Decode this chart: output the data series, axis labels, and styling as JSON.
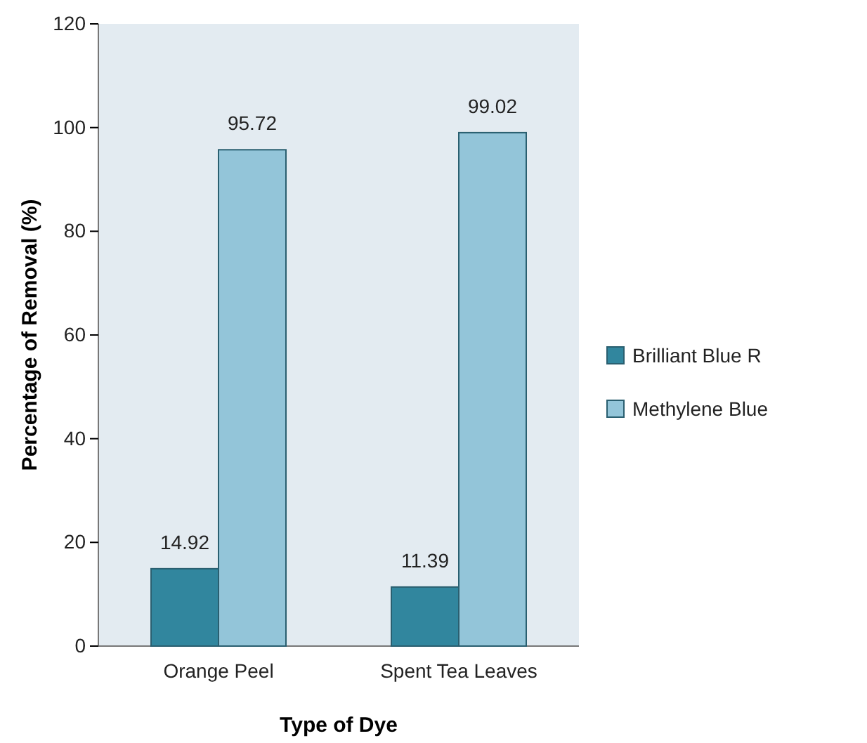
{
  "chart_data": {
    "type": "bar",
    "xlabel": "Type of Dye",
    "ylabel": "Percentage of Removal (%)",
    "categories": [
      "Orange Peel",
      "Spent Tea Leaves"
    ],
    "series": [
      {
        "name": "Brilliant Blue R",
        "color": "#31869e",
        "values": [
          14.92,
          11.39
        ]
      },
      {
        "name": "Methylene Blue",
        "color": "#93c5d9",
        "values": [
          95.72,
          99.02
        ]
      }
    ],
    "ylim": [
      0,
      120
    ],
    "yticks": [
      0,
      20,
      40,
      60,
      80,
      100,
      120
    ],
    "grid": false,
    "legend": "right",
    "data_labels": true
  }
}
